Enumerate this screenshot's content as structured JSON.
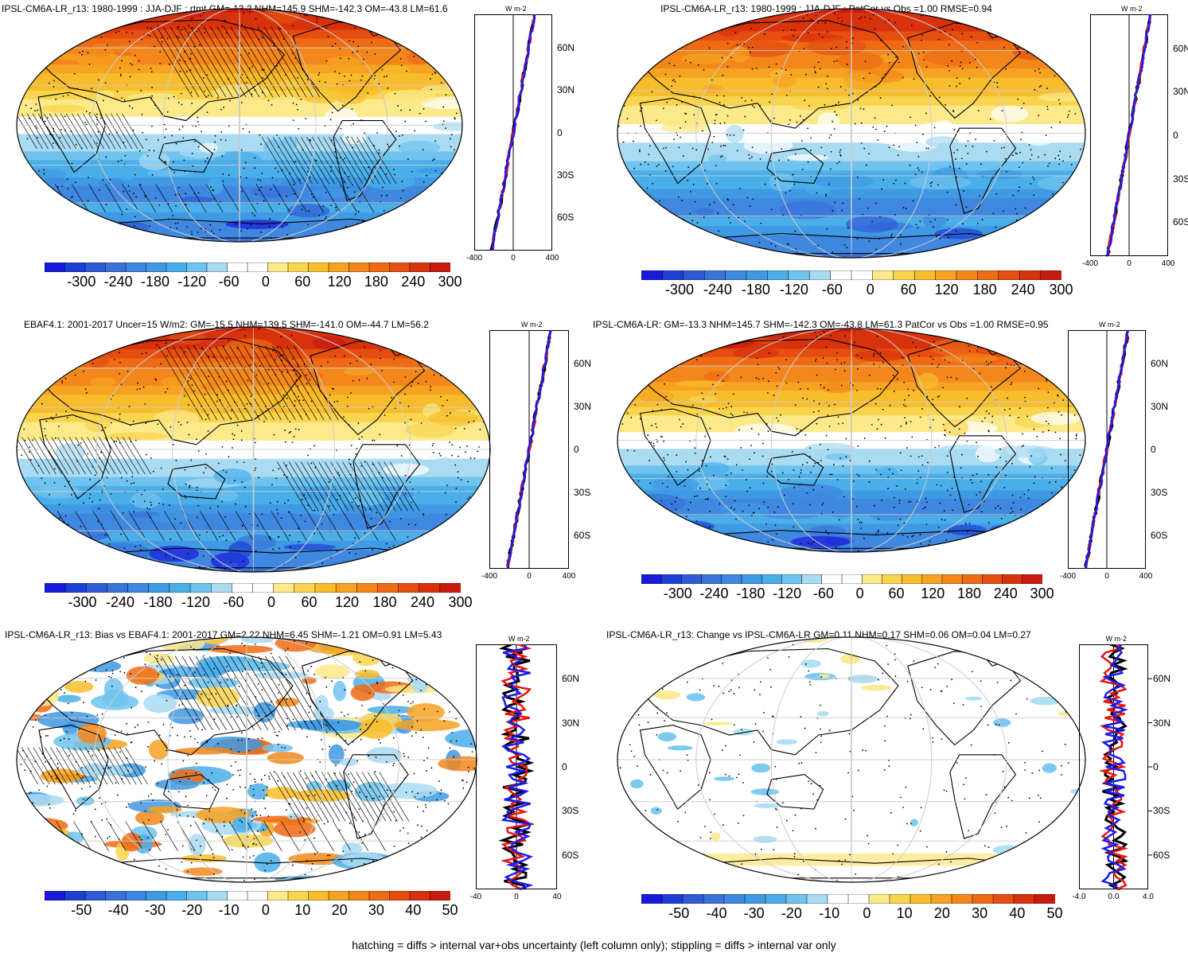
{
  "panels": [
    {
      "id": "p1",
      "title": "IPSL-CM6A-LR_r13: 1980-1999 : JJA-DJF : rtmt GM=-13.2 NHM=145.9 SHM=-142.3 OM=-43.8 LM=61.6",
      "kind": "absolute",
      "hatch": true,
      "cbar_labels": [
        "-300",
        "-240",
        "-180",
        "-120",
        "-60",
        "0",
        "60",
        "120",
        "180",
        "240",
        "300"
      ],
      "prof_lat_labels": [
        "60N",
        "30N",
        "0",
        "30S",
        "60S"
      ],
      "prof_x_labels": [
        "-400",
        "0",
        "400"
      ],
      "units": "W m-2"
    },
    {
      "id": "p2",
      "title": "IPSL-CM6A-LR_r13: 1980-1999 : JJA-DJF : PatCor vs Obs =1.00 RMSE=0.94",
      "kind": "absolute",
      "hatch": false,
      "cbar_labels": [
        "-300",
        "-240",
        "-180",
        "-120",
        "-60",
        "0",
        "60",
        "120",
        "180",
        "240",
        "300"
      ],
      "prof_lat_labels": [
        "60N",
        "30N",
        "0",
        "30S",
        "60S"
      ],
      "prof_x_labels": [
        "-400",
        "0",
        "400"
      ],
      "units": "W m-2"
    },
    {
      "id": "p3",
      "title": "EBAF4.1: 2001-2017 Uncer=15 W/m2: GM=-15.5 NHM=139.5 SHM=-141.0 OM=-44.7 LM=56.2",
      "kind": "absolute",
      "hatch": true,
      "cbar_labels": [
        "-300",
        "-240",
        "-180",
        "-120",
        "-60",
        "0",
        "60",
        "120",
        "180",
        "240",
        "300"
      ],
      "prof_lat_labels": [
        "60N",
        "30N",
        "0",
        "30S",
        "60S"
      ],
      "prof_x_labels": [
        "-400",
        "0",
        "400"
      ],
      "units": "W m-2"
    },
    {
      "id": "p4",
      "title": "IPSL-CM6A-LR: GM=-13.3 NHM=145.7 SHM=-142.3 OM=-43.8 LM=61.3 PatCor vs Obs =1.00 RMSE=0.95",
      "kind": "absolute",
      "hatch": false,
      "cbar_labels": [
        "-300",
        "-240",
        "-180",
        "-120",
        "-60",
        "0",
        "60",
        "120",
        "180",
        "240",
        "300"
      ],
      "prof_lat_labels": [
        "60N",
        "30N",
        "0",
        "30S",
        "60S"
      ],
      "prof_x_labels": [
        "-400",
        "0",
        "400"
      ],
      "units": "W m-2"
    },
    {
      "id": "p5",
      "title": "IPSL-CM6A-LR_r13: Bias vs EBAF4.1: 2001-2017 GM=2.22 NHM=6.45 SHM=-1.21 OM=0.91 LM=5.43",
      "kind": "bias",
      "hatch": true,
      "cbar_labels": [
        "-50",
        "-40",
        "-30",
        "-20",
        "-10",
        "0",
        "10",
        "20",
        "30",
        "40",
        "50"
      ],
      "prof_lat_labels": [
        "60N",
        "30N",
        "0",
        "30S",
        "60S"
      ],
      "prof_x_labels": [
        "-40",
        "0",
        "40"
      ],
      "units": "W m-2"
    },
    {
      "id": "p6",
      "title": "IPSL-CM6A-LR_r13: Change vs IPSL-CM6A-LR GM=0.11 NHM=0.17 SHM=0.06 OM=0.04 LM=0.27",
      "kind": "change",
      "hatch": false,
      "cbar_labels": [
        "-50",
        "-40",
        "-30",
        "-20",
        "-10",
        "0",
        "10",
        "20",
        "30",
        "40",
        "50"
      ],
      "prof_lat_labels": [
        "60N",
        "30N",
        "0",
        "30S",
        "60S"
      ],
      "prof_x_labels": [
        "-4.0",
        "0.0",
        "4.0"
      ],
      "units": "W m-2"
    }
  ],
  "colors": {
    "palette": [
      "#1a1adb",
      "#1e3fd6",
      "#2f5bd4",
      "#3a72d9",
      "#3f87df",
      "#3f99e3",
      "#4aaee9",
      "#6fc3ee",
      "#a9dbf3",
      "#ffffff",
      "#ffffff",
      "#fbe98a",
      "#f9d44f",
      "#f8bd2c",
      "#f6a222",
      "#f3871b",
      "#ee6b14",
      "#e54e10",
      "#d8320d",
      "#c81b10"
    ],
    "continent": "#000000",
    "grid": "#cccccc",
    "series": [
      "#000000",
      "#e8150f",
      "#1a1aee"
    ]
  },
  "footer": "hatching = diffs > internal var+obs uncertainty (left column only); stippling = diffs > internal var only"
}
